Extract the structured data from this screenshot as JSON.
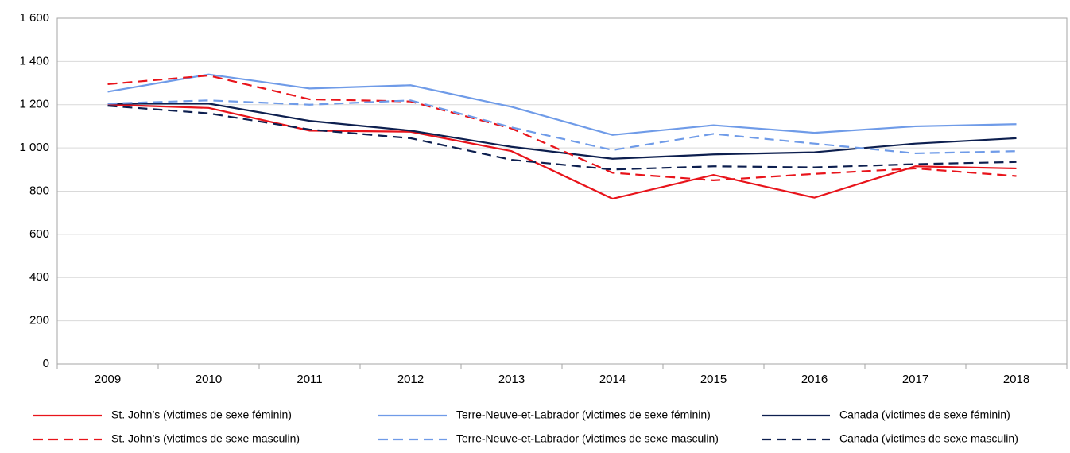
{
  "chart_data": {
    "type": "line",
    "categories": [
      "2009",
      "2010",
      "2011",
      "2012",
      "2013",
      "2014",
      "2015",
      "2016",
      "2017",
      "2018"
    ],
    "series": [
      {
        "name": "St. John’s (victimes de sexe féminin)",
        "color": "#e8141b",
        "line_style": "solid",
        "values": [
          1200,
          1185,
          1080,
          1075,
          985,
          765,
          875,
          770,
          915,
          905
        ]
      },
      {
        "name": "Terre-Neuve-et-Labrador (victimes de sexe féminin)",
        "color": "#6f9be8",
        "line_style": "solid",
        "values": [
          1260,
          1340,
          1275,
          1290,
          1190,
          1060,
          1105,
          1070,
          1100,
          1110
        ]
      },
      {
        "name": "Canada (victimes de sexe féminin)",
        "color": "#0d1f4f",
        "line_style": "solid",
        "values": [
          1205,
          1205,
          1125,
          1080,
          1005,
          950,
          970,
          980,
          1020,
          1045
        ]
      },
      {
        "name": "St. John’s (victimes de sexe masculin)",
        "color": "#e8141b",
        "line_style": "dashed",
        "values": [
          1295,
          1335,
          1225,
          1215,
          1090,
          885,
          850,
          880,
          905,
          870
        ]
      },
      {
        "name": "Terre-Neuve-et-Labrador (victimes de sexe masculin)",
        "color": "#6f9be8",
        "line_style": "dashed",
        "values": [
          1205,
          1220,
          1200,
          1220,
          1095,
          990,
          1065,
          1020,
          975,
          985
        ]
      },
      {
        "name": "Canada (victimes de sexe masculin)",
        "color": "#0d1f4f",
        "line_style": "dashed",
        "values": [
          1195,
          1160,
          1085,
          1045,
          945,
          900,
          915,
          910,
          925,
          935
        ]
      }
    ],
    "ylim": [
      0,
      1600
    ],
    "yticks": [
      0,
      200,
      400,
      600,
      800,
      {
        "value": 1000,
        "label": "1 000"
      },
      {
        "value": 1200,
        "label": "1 200"
      },
      {
        "value": 1400,
        "label": "1 400"
      },
      {
        "value": 1600,
        "label": "1 600"
      }
    ],
    "grid": true,
    "legend": "bottom"
  }
}
